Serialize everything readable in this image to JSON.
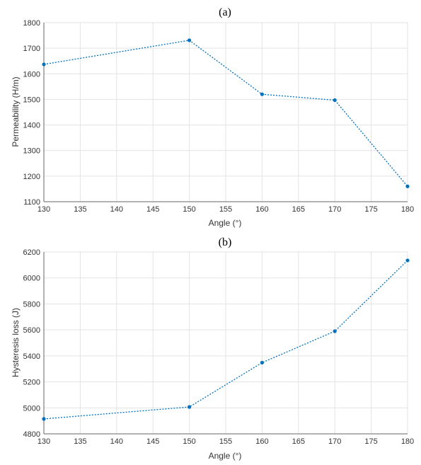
{
  "chart_data": [
    {
      "type": "line",
      "title": "(a)",
      "xlabel": "Angle (°)",
      "ylabel": "Permeability (H/m)",
      "xlim": [
        130,
        180
      ],
      "ylim": [
        1100,
        1800
      ],
      "xticks": [
        130,
        135,
        140,
        145,
        150,
        155,
        160,
        165,
        170,
        175,
        180
      ],
      "yticks": [
        1100,
        1200,
        1300,
        1400,
        1500,
        1600,
        1700,
        1800
      ],
      "grid": true,
      "color": "#0072BD",
      "series": [
        {
          "x": [
            130,
            150,
            160,
            170,
            180
          ],
          "y": [
            1637,
            1731,
            1520,
            1497,
            1160
          ]
        }
      ]
    },
    {
      "type": "line",
      "title": "(b)",
      "xlabel": "Angle (°)",
      "ylabel": "Hysteresis loss (J)",
      "xlim": [
        130,
        180
      ],
      "ylim": [
        4800,
        6200
      ],
      "xticks": [
        130,
        135,
        140,
        145,
        150,
        155,
        160,
        165,
        170,
        175,
        180
      ],
      "yticks": [
        4800,
        5000,
        5200,
        5400,
        5600,
        5800,
        6000,
        6200
      ],
      "grid": true,
      "color": "#0072BD",
      "series": [
        {
          "x": [
            130,
            150,
            160,
            170,
            180
          ],
          "y": [
            4915,
            5007,
            5348,
            5590,
            6135
          ]
        }
      ]
    }
  ]
}
